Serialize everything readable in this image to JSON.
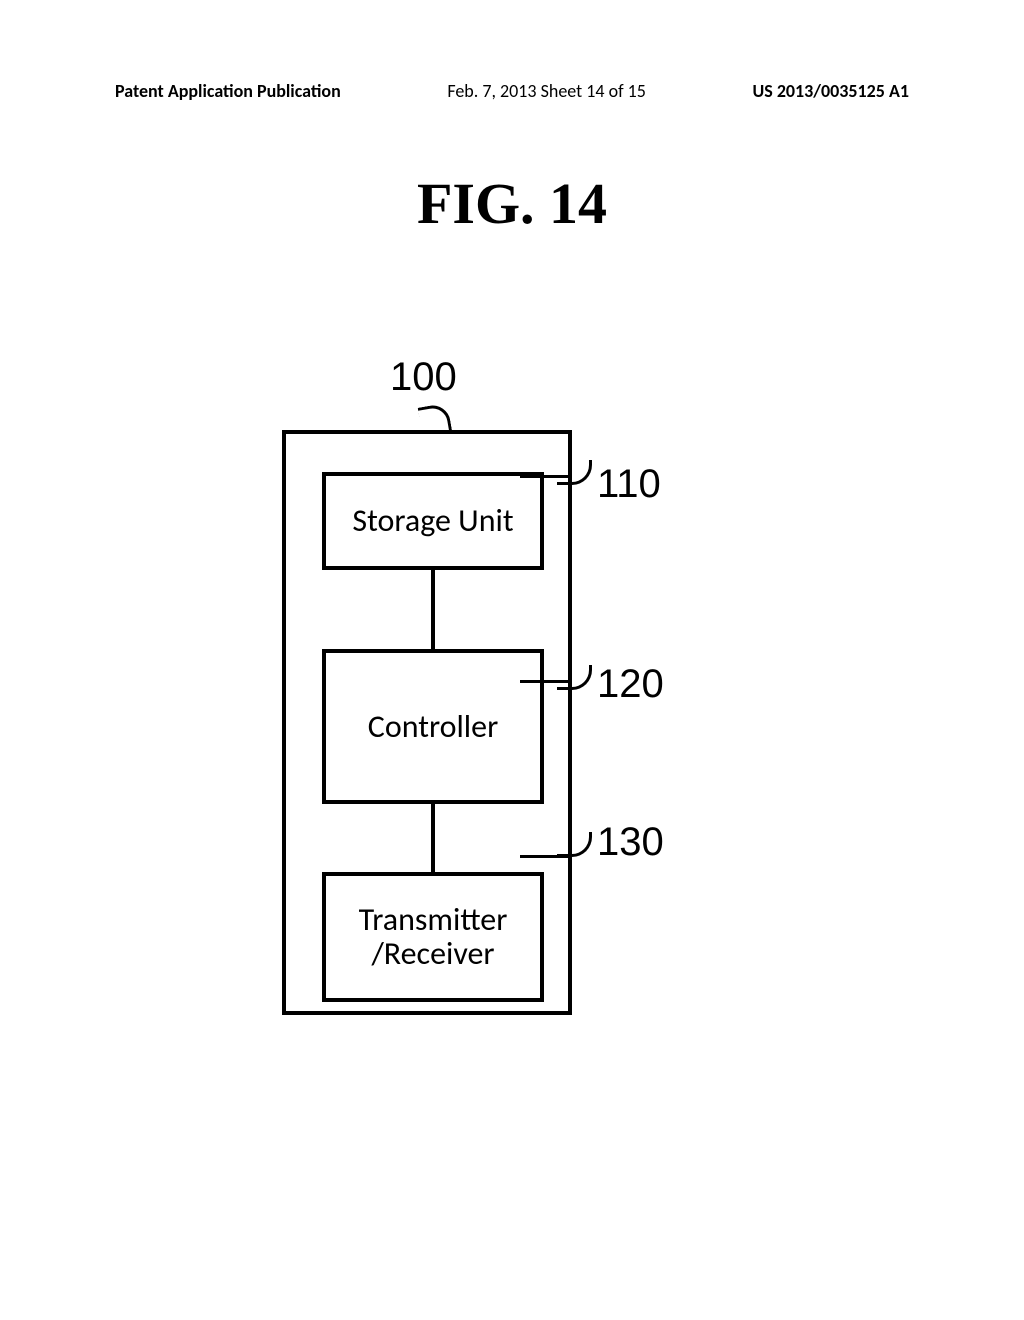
{
  "header": {
    "left": "Patent Application Publication",
    "center": "Feb. 7, 2013  Sheet 14 of 15",
    "right": "US 2013/0035125 A1"
  },
  "figure": {
    "title": "FIG. 14",
    "main_ref": "100",
    "nodes": [
      {
        "id": "storage",
        "label": "Storage Unit",
        "ref": "110"
      },
      {
        "id": "controller",
        "label": "Controller",
        "ref": "120"
      },
      {
        "id": "transmitter",
        "label": "Transmitter /Receiver",
        "ref": "130"
      }
    ],
    "styling": {
      "box_border_color": "#000000",
      "box_border_width": 4,
      "background_color": "#ffffff",
      "node_fontsize": 32,
      "ref_fontsize": 40,
      "title_fontsize": 58,
      "title_fontweight": "bold",
      "title_fontfamily": "Times New Roman",
      "header_fontsize": 18
    }
  }
}
